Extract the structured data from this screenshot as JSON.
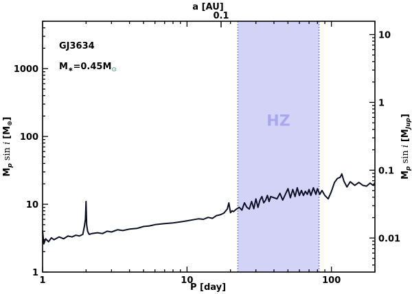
{
  "chart_data": {
    "type": "line",
    "title": "",
    "xlabel": "P [day]",
    "ylabel": "M_p sin i [M_⊕]",
    "ylabel_parts": {
      "base": "M",
      "sub": "p",
      "func": "sin",
      "ital": "i",
      "unit": "[M",
      "unit_sub": "⊕",
      "close": "]"
    },
    "y2label_parts": {
      "base": "M",
      "sub": "p",
      "func": "sin",
      "ital": "i",
      "unit": "[M",
      "unit_sub": "Jup",
      "close": "]"
    },
    "top_xlabel": "a [AU]",
    "xscale": "log",
    "yscale": "log",
    "xlim": [
      1,
      200
    ],
    "ylim": [
      1,
      5000
    ],
    "x_ticks": [
      1,
      10,
      100
    ],
    "x_tick_labels": [
      "1",
      "10",
      "100"
    ],
    "y_ticks": [
      1,
      10,
      100,
      1000
    ],
    "y_tick_labels": [
      "1",
      "10",
      "100",
      "1000"
    ],
    "top_ticks": [
      {
        "au": 0.1,
        "label": "0.1"
      }
    ],
    "right_ticks": [
      {
        "mjup": 0.01,
        "label": "0.01"
      },
      {
        "mjup": 0.1,
        "label": "0.1"
      },
      {
        "mjup": 1,
        "label": "1"
      },
      {
        "mjup": 10,
        "label": "10"
      }
    ],
    "mjup_in_mearth": 317.8,
    "stellar_mass_msun": 0.45,
    "habitable_zone": {
      "p_min": 22.5,
      "p_max": 82,
      "label": "HZ",
      "color": "#d3d3f8",
      "edge_color": "#7777c8",
      "label_color": "#a8a8ee"
    },
    "annotations": [
      {
        "id": "star",
        "text": "GJ3634"
      },
      {
        "id": "mass",
        "base": "M",
        "sub": "∗",
        "text": "=0.45M",
        "sun": "⊙"
      }
    ],
    "series": [
      {
        "color": "#0a0f23",
        "x": [
          1.0,
          1.02,
          1.05,
          1.1,
          1.15,
          1.2,
          1.3,
          1.4,
          1.5,
          1.6,
          1.7,
          1.8,
          1.9,
          1.95,
          1.98,
          2.0,
          2.02,
          2.05,
          2.1,
          2.2,
          2.4,
          2.6,
          2.8,
          3.0,
          3.3,
          3.6,
          4.0,
          4.5,
          5.0,
          5.5,
          6.0,
          7.0,
          8.0,
          9.0,
          10.0,
          11.0,
          12.0,
          13.0,
          14.0,
          15.0,
          16.0,
          17.0,
          18.0,
          19.0,
          19.5,
          20.0,
          20.5,
          21.0,
          22.0,
          23.0,
          24.0,
          25.0,
          26.0,
          27.0,
          28.0,
          29.0,
          30.0,
          31.0,
          32.0,
          33.0,
          34.0,
          35.0,
          36.0,
          37.0,
          38.0,
          40.0,
          42.0,
          44.0,
          46.0,
          48.0,
          50.0,
          52.0,
          54.0,
          56.0,
          58.0,
          60.0,
          62.0,
          64.0,
          66.0,
          68.0,
          70.0,
          72.0,
          75.0,
          78.0,
          80.0,
          83.0,
          86.0,
          90.0,
          95.0,
          100.0,
          105.0,
          110.0,
          115.0,
          118.0,
          122.0,
          128.0,
          135.0,
          145.0,
          155.0,
          165.0,
          175.0,
          185.0,
          195.0,
          200.0
        ],
        "y": [
          4.1,
          2.6,
          3.1,
          2.8,
          3.2,
          3.0,
          3.3,
          3.1,
          3.4,
          3.3,
          3.5,
          3.4,
          3.6,
          4.8,
          6.0,
          11.0,
          5.0,
          4.0,
          3.6,
          3.7,
          3.8,
          3.7,
          4.0,
          3.9,
          4.2,
          4.1,
          4.3,
          4.4,
          4.7,
          4.8,
          5.0,
          5.2,
          5.3,
          5.5,
          5.7,
          5.9,
          6.1,
          6.0,
          6.4,
          6.2,
          6.8,
          7.0,
          7.4,
          8.5,
          10.5,
          7.5,
          8.0,
          7.8,
          8.5,
          9.0,
          8.2,
          10.5,
          9.0,
          8.5,
          11.0,
          8.6,
          12.0,
          9.0,
          11.5,
          13.0,
          10.5,
          11.5,
          13.5,
          11.0,
          13.0,
          12.5,
          12.0,
          14.5,
          11.5,
          14.0,
          17.0,
          12.5,
          16.5,
          13.0,
          17.5,
          13.5,
          16.0,
          13.5,
          15.5,
          14.0,
          16.5,
          13.5,
          17.5,
          14.0,
          17.0,
          14.0,
          16.0,
          13.5,
          12.0,
          15.5,
          21.0,
          24.0,
          25.0,
          28.0,
          22.0,
          18.0,
          21.5,
          19.0,
          21.0,
          19.0,
          18.5,
          20.5,
          19.0,
          21.0
        ]
      }
    ]
  }
}
